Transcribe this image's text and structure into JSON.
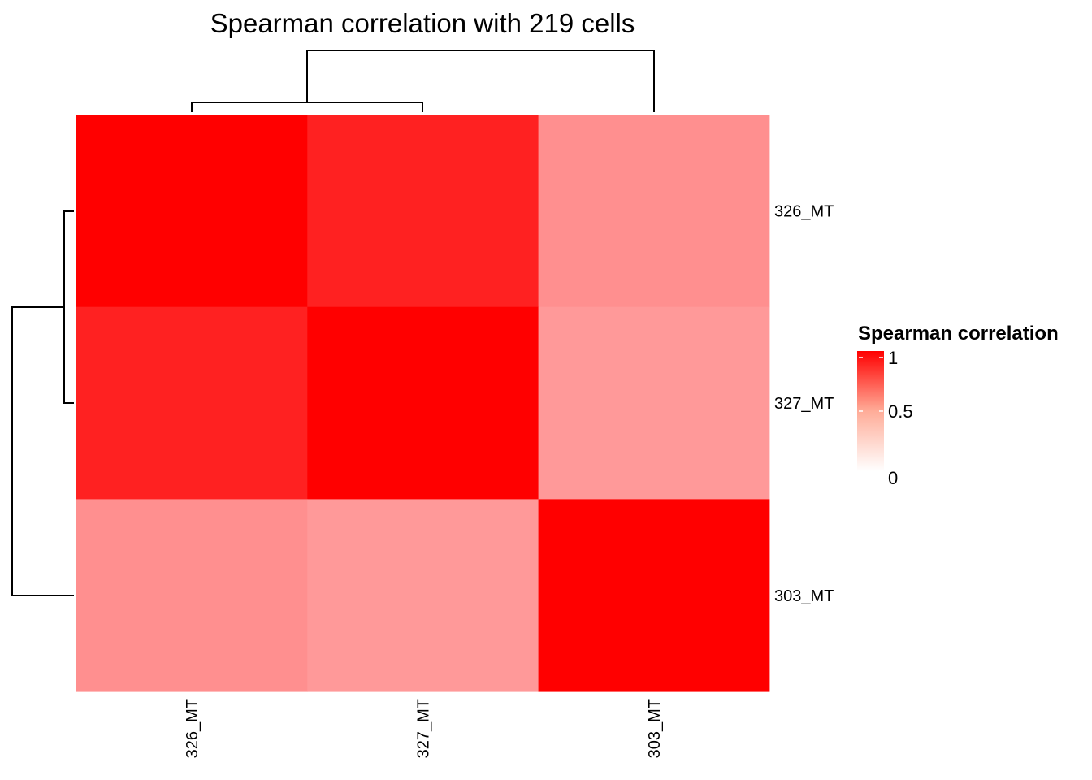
{
  "chart_data": {
    "type": "heatmap",
    "title": "Spearman correlation with 219 cells",
    "columns": [
      "326_MT",
      "327_MT",
      "303_MT"
    ],
    "rows": [
      "326_MT",
      "327_MT",
      "303_MT"
    ],
    "values": [
      [
        1.0,
        0.87,
        0.44
      ],
      [
        0.87,
        1.0,
        0.4
      ],
      [
        0.44,
        0.4,
        1.0
      ]
    ],
    "value_range": [
      0,
      1
    ],
    "color_low": "#ffffff",
    "color_high": "#ff0000",
    "legend": {
      "title": "Spearman correlation",
      "ticks": [
        "1",
        "0.5",
        "0"
      ],
      "tick_values": [
        1,
        0.5,
        0
      ],
      "placement": "right"
    },
    "dendrogram": {
      "column_clusters": "((326_MT,327_MT),303_MT)",
      "row_clusters": "((326_MT,327_MT),303_MT)"
    }
  }
}
